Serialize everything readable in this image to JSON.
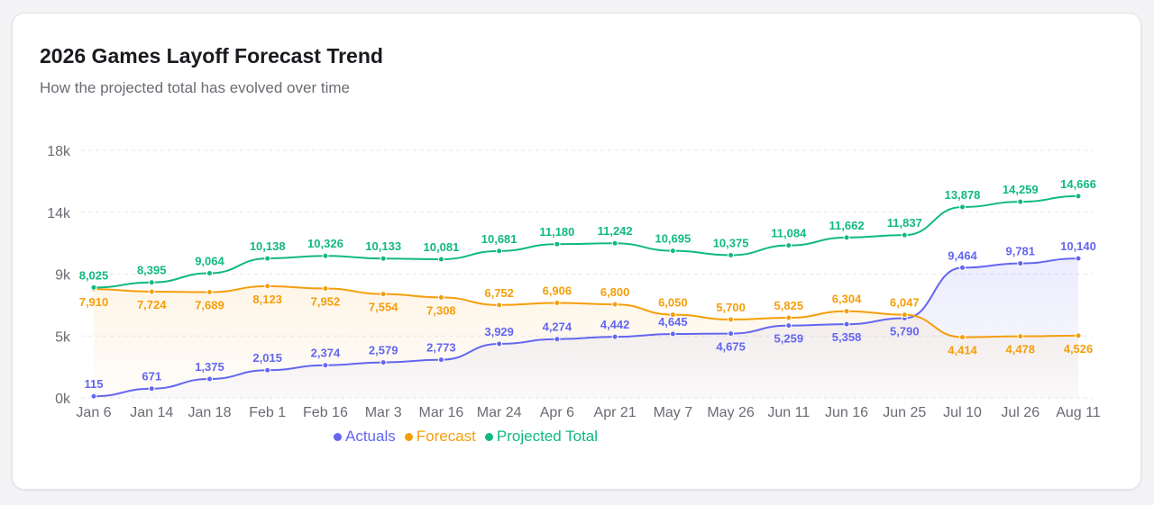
{
  "title": "2026 Games Layoff Forecast Trend",
  "subtitle": "How the projected total has evolved over time",
  "colors": {
    "actuals": "#6366f1",
    "forecast": "#f59e0b",
    "projected": "#10b981",
    "grid": "#e5e7eb",
    "axis_text": "#6b6b74"
  },
  "chart_data": {
    "type": "line",
    "categories": [
      "Jan 6",
      "Jan 14",
      "Jan 18",
      "Feb 1",
      "Feb 16",
      "Mar 3",
      "Mar 16",
      "Mar 24",
      "Apr 6",
      "Apr 21",
      "May 7",
      "May 26",
      "Jun 11",
      "Jun 16",
      "Jun 25",
      "Jul 10",
      "Jul 26",
      "Aug 11"
    ],
    "y_ticks": [
      "0k",
      "5k",
      "9k",
      "14k",
      "18k"
    ],
    "ylim": [
      0,
      18000
    ],
    "grid": true,
    "legend_position": "bottom",
    "series": [
      {
        "name": "Actuals",
        "values": [
          115,
          671,
          1375,
          2015,
          2374,
          2579,
          2773,
          3929,
          4274,
          4442,
          4645,
          4675,
          5259,
          5358,
          5790,
          9464,
          9781,
          10140
        ],
        "labels": [
          "115",
          "671",
          "1,375",
          "2,015",
          "2,374",
          "2,579",
          "2,773",
          "3,929",
          "4,274",
          "4,442",
          "4,645",
          "4,675",
          "5,259",
          "5,358",
          "5,790",
          "9,464",
          "9,781",
          "10,140"
        ]
      },
      {
        "name": "Forecast",
        "values": [
          7910,
          7724,
          7689,
          8123,
          7952,
          7554,
          7308,
          6752,
          6906,
          6800,
          6050,
          5700,
          5825,
          6304,
          6047,
          4414,
          4478,
          4526
        ],
        "labels": [
          "7,910",
          "7,724",
          "7,689",
          "8,123",
          "7,952",
          "7,554",
          "7,308",
          "6,752",
          "6,906",
          "6,800",
          "6,050",
          "5,700",
          "5,825",
          "6,304",
          "6,047",
          "4,414",
          "4,478",
          "4,526"
        ]
      },
      {
        "name": "Projected Total",
        "values": [
          8025,
          8395,
          9064,
          10138,
          10326,
          10133,
          10081,
          10681,
          11180,
          11242,
          10695,
          10375,
          11084,
          11662,
          11837,
          13878,
          14259,
          14666
        ],
        "labels": [
          "8,025",
          "8,395",
          "9,064",
          "10,138",
          "10,326",
          "10,133",
          "10,081",
          "10,681",
          "11,180",
          "11,242",
          "10,695",
          "10,375",
          "11,084",
          "11,662",
          "11,837",
          "13,878",
          "14,259",
          "14,666"
        ]
      }
    ]
  }
}
